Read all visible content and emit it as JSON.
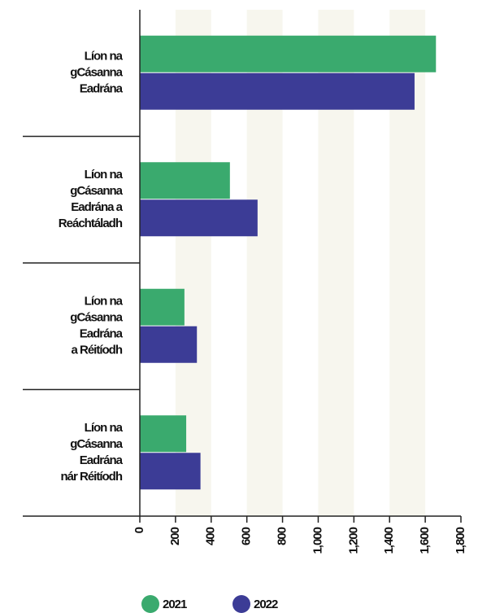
{
  "chart_data": {
    "type": "hbar",
    "categories": [
      [
        "Líon na",
        "gCásanna",
        "Eadrána"
      ],
      [
        "Líon na",
        "gCásanna",
        "Eadrána a",
        "Reáchtáladh"
      ],
      [
        "Líon na",
        "gCásanna",
        "Eadrána",
        "a Réitíodh"
      ],
      [
        "Líon na",
        "gCásanna",
        "Eadrána",
        "nár Réitíodh"
      ]
    ],
    "series": [
      {
        "name": "2021",
        "color": "#3aaa6e",
        "values": [
          1660,
          505,
          250,
          260
        ]
      },
      {
        "name": "2022",
        "color": "#3c3c96",
        "values": [
          1540,
          660,
          320,
          340
        ]
      }
    ],
    "xlim": [
      0,
      1800
    ],
    "xticks": [
      0,
      200,
      400,
      600,
      800,
      {
        "value": 1000,
        "label": "1,000"
      },
      {
        "value": 1200,
        "label": "1,200"
      },
      {
        "value": 1400,
        "label": "1,400"
      },
      {
        "value": 1600,
        "label": "1,600"
      },
      {
        "value": 1800,
        "label": "1,800"
      }
    ],
    "legend": "bottom"
  }
}
